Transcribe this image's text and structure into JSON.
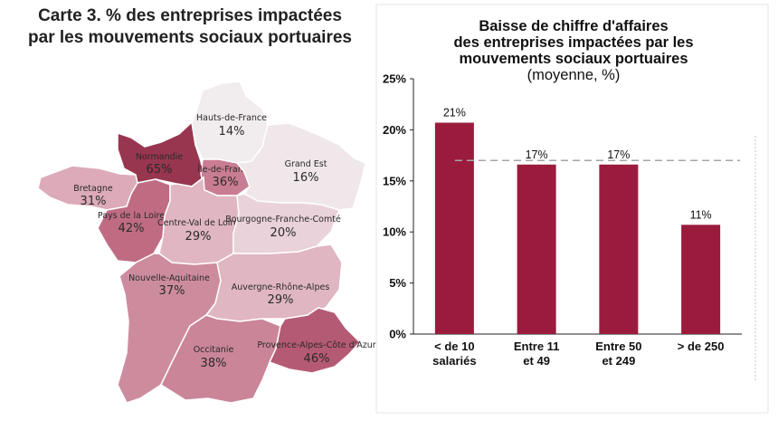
{
  "map": {
    "title_line1": "Carte 3. % des entreprises impactées",
    "title_line2": "par les mouvements sociaux portuaires",
    "regions": [
      {
        "id": "hauts-de-france",
        "name": "Hauts-de-France",
        "value": "14%",
        "color": "#f1ecee"
      },
      {
        "id": "normandie",
        "name": "Normandie",
        "value": "65%",
        "color": "#98364f"
      },
      {
        "id": "ile-de-france",
        "name": "Île-de-France",
        "value": "36%",
        "color": "#c97d92"
      },
      {
        "id": "grand-est",
        "name": "Grand Est",
        "value": "16%",
        "color": "#efe7ea"
      },
      {
        "id": "bretagne",
        "name": "Bretagne",
        "value": "31%",
        "color": "#dcaab8"
      },
      {
        "id": "pays-de-la-loire",
        "name": "Pays de la Loire",
        "value": "42%",
        "color": "#bf6c83"
      },
      {
        "id": "centre-val-de-loire",
        "name": "Centre-Val de Loire",
        "value": "29%",
        "color": "#e0b6c2"
      },
      {
        "id": "bourgogne-franche-comte",
        "name": "Bourgogne-Franche-Comté",
        "value": "20%",
        "color": "#ead2da"
      },
      {
        "id": "nouvelle-aquitaine",
        "name": "Nouvelle-Aquitaine",
        "value": "37%",
        "color": "#cd8c9e"
      },
      {
        "id": "auvergne-rhone-alpes",
        "name": "Auvergne-Rhône-Alpes",
        "value": "29%",
        "color": "#e0b6c2"
      },
      {
        "id": "occitanie",
        "name": "Occitanie",
        "value": "38%",
        "color": "#ca8599"
      },
      {
        "id": "provence-alpes-cote-d-azur",
        "name": "Provence-Alpes-Côte d'Azur",
        "value": "46%",
        "color": "#b55a74"
      }
    ]
  },
  "chart_data": {
    "type": "bar",
    "title_line1": "Baisse de chiffre d'affaires",
    "title_line2": "des entreprises impactées par les",
    "title_line3": "mouvements sociaux portuaires",
    "subtitle": "(moyenne, %)",
    "categories": [
      [
        "< de 10",
        "salariés"
      ],
      [
        "Entre 11",
        "et 49"
      ],
      [
        "Entre 50",
        "et 249"
      ],
      [
        "> de 250"
      ]
    ],
    "values": [
      21,
      17,
      17,
      11
    ],
    "bar_values": [
      20.7,
      16.6,
      16.6,
      10.7
    ],
    "data_labels": [
      "21%",
      "17%",
      "17%",
      "11%"
    ],
    "reference_line": 17,
    "ylim": [
      0,
      25
    ],
    "yticks": [
      0,
      5,
      10,
      15,
      20,
      25
    ],
    "ytick_labels": [
      "0%",
      "5%",
      "10%",
      "15%",
      "20%",
      "25%"
    ],
    "bar_color": "#9b1b3d",
    "reference_line_color": "#a6a6a6",
    "grid": false
  }
}
